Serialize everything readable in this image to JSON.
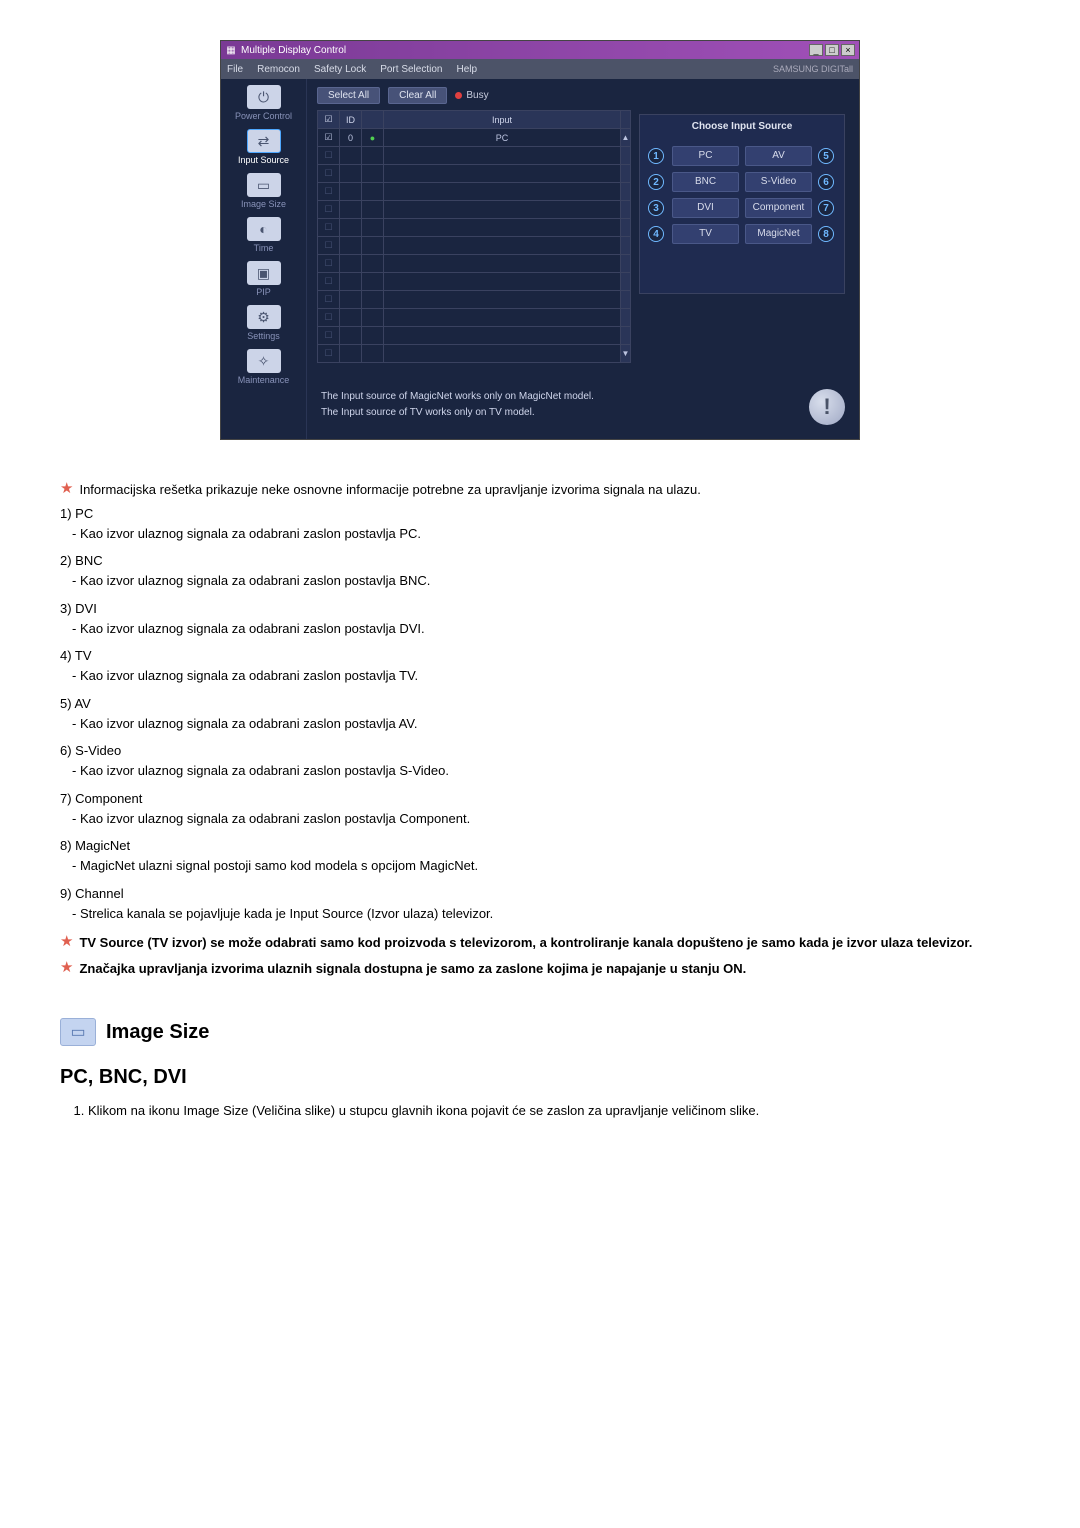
{
  "app": {
    "title": "Multiple Display Control",
    "brand": "SAMSUNG DIGITall"
  },
  "menu": [
    "File",
    "Remocon",
    "Safety Lock",
    "Port Selection",
    "Help"
  ],
  "toolbar": {
    "select_all": "Select All",
    "clear_all": "Clear All",
    "busy": "Busy"
  },
  "sidebar": [
    {
      "label": "Power Control",
      "icon": "⏻"
    },
    {
      "label": "Input Source",
      "icon": "⇄",
      "active": true
    },
    {
      "label": "Image Size",
      "icon": "▭"
    },
    {
      "label": "Time",
      "icon": "◐"
    },
    {
      "label": "PIP",
      "icon": "▣"
    },
    {
      "label": "Settings",
      "icon": "⚙"
    },
    {
      "label": "Maintenance",
      "icon": "✧"
    }
  ],
  "grid": {
    "headers": [
      "☑",
      "ID",
      "",
      "Input"
    ],
    "row0": [
      "☑",
      "0",
      "●",
      "PC"
    ],
    "blank_rows": 12
  },
  "choose": {
    "title": "Choose Input Source",
    "left": [
      {
        "num": "1",
        "label": "PC"
      },
      {
        "num": "2",
        "label": "BNC"
      },
      {
        "num": "3",
        "label": "DVI"
      },
      {
        "num": "4",
        "label": "TV"
      }
    ],
    "right": [
      {
        "num": "5",
        "label": "AV"
      },
      {
        "num": "6",
        "label": "S-Video"
      },
      {
        "num": "7",
        "label": "Component"
      },
      {
        "num": "8",
        "label": "MagicNet"
      }
    ]
  },
  "footer": {
    "line1": "The Input source of MagicNet works only on MagicNet model.",
    "line2": "The Input source of TV works only on TV model."
  },
  "text": {
    "star1": "Informacijska rešetka prikazuje neke osnovne informacije potrebne za upravljanje izvorima signala na ulazu.",
    "items": [
      {
        "num": "1)",
        "name": "PC",
        "desc": "- Kao izvor ulaznog signala za odabrani zaslon postavlja PC."
      },
      {
        "num": "2)",
        "name": "BNC",
        "desc": "- Kao izvor ulaznog signala za odabrani zaslon postavlja BNC."
      },
      {
        "num": "3)",
        "name": "DVI",
        "desc": "- Kao izvor ulaznog signala za odabrani zaslon postavlja DVI."
      },
      {
        "num": "4)",
        "name": "TV",
        "desc": "- Kao izvor ulaznog signala za odabrani zaslon postavlja TV."
      },
      {
        "num": "5)",
        "name": "AV",
        "desc": "- Kao izvor ulaznog signala za odabrani zaslon postavlja AV."
      },
      {
        "num": "6)",
        "name": "S-Video",
        "desc": "- Kao izvor ulaznog signala za odabrani zaslon postavlja S-Video."
      },
      {
        "num": "7)",
        "name": "Component",
        "desc": "- Kao izvor ulaznog signala za odabrani zaslon postavlja Component."
      },
      {
        "num": "8)",
        "name": "MagicNet",
        "desc": "- MagicNet ulazni signal postoji samo kod modela s opcijom MagicNet."
      },
      {
        "num": "9)",
        "name": "Channel",
        "desc": "- Strelica kanala se pojavljuje kada je Input Source (Izvor ulaza) televizor."
      }
    ],
    "star2": "TV Source (TV izvor) se može odabrati samo kod proizvoda s televizorom, a kontroliranje kanala dopušteno je samo kada je izvor ulaza televizor.",
    "star3": "Značajka upravljanja izvorima ulaznih signala dostupna je samo za zaslone kojima je napajanje u stanju ON.",
    "section_title": "Image Size",
    "subheading": "PC, BNC, DVI",
    "instr1": "Klikom na ikonu Image Size (Veličina slike) u stupcu glavnih ikona pojavit će se zaslon za upravljanje veličinom slike."
  },
  "colors": {
    "titlebar_start": "#7a3a95",
    "titlebar_end": "#a050b8",
    "app_bg": "#1a2540",
    "star": "#e06050",
    "circle_border": "#6fb8ff"
  }
}
